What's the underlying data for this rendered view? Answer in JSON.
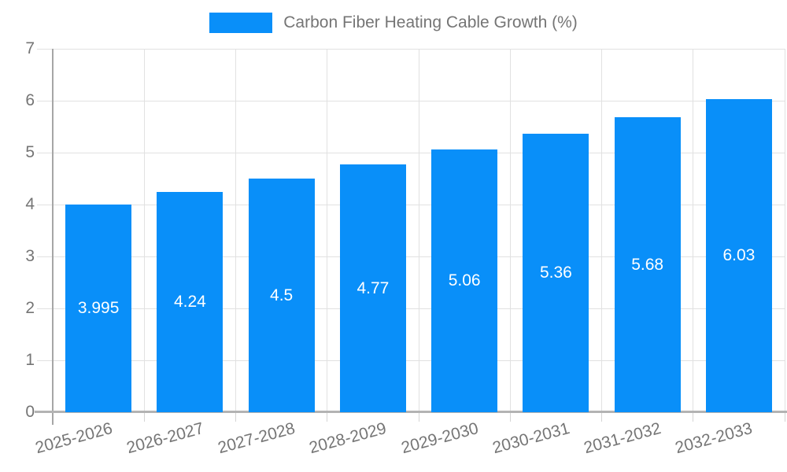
{
  "legend": {
    "label": "Carbon Fiber Heating Cable Growth (%)",
    "swatch_color": "#098ff9"
  },
  "chart_data": {
    "type": "bar",
    "title": "Carbon Fiber Heating Cable Growth (%)",
    "categories": [
      "2025-2026",
      "2026-2027",
      "2027-2028",
      "2028-2029",
      "2029-2030",
      "2030-2031",
      "2031-2032",
      "2032-2033"
    ],
    "values": [
      3.995,
      4.24,
      4.5,
      4.77,
      5.06,
      5.36,
      5.68,
      6.03
    ],
    "value_labels": [
      "3.995",
      "4.24",
      "4.5",
      "4.77",
      "5.06",
      "5.36",
      "5.68",
      "6.03"
    ],
    "xlabel": "",
    "ylabel": "",
    "ylim": [
      0,
      7
    ],
    "y_ticks": [
      0,
      1,
      2,
      3,
      4,
      5,
      6,
      7
    ],
    "grid": true,
    "legend_position": "top-center",
    "colors": {
      "bar": "#098ff9",
      "bar_value_text": "#ffffff",
      "axis_text": "#757575",
      "gridline": "#e1e1e1",
      "y_axis_line": "#a6a6a6",
      "x_axis_line": "#b3b3b3",
      "background": "#ffffff"
    }
  }
}
